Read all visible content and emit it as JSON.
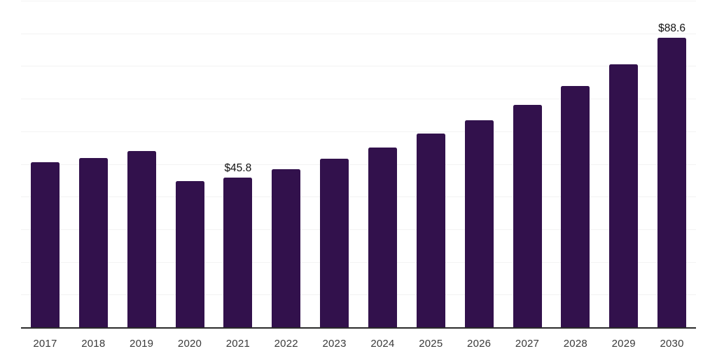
{
  "chart_data": {
    "type": "bar",
    "title": "",
    "xlabel": "",
    "ylabel": "",
    "categories": [
      "2017",
      "2018",
      "2019",
      "2020",
      "2021",
      "2022",
      "2023",
      "2024",
      "2025",
      "2026",
      "2027",
      "2028",
      "2029",
      "2030"
    ],
    "values": [
      50.6,
      51.9,
      54.0,
      44.8,
      45.8,
      48.3,
      51.6,
      55.1,
      59.3,
      63.4,
      68.1,
      73.8,
      80.6,
      88.6
    ],
    "ylim": [
      0,
      100
    ],
    "grid": true,
    "gridline_values": [
      10,
      20,
      30,
      40,
      50,
      60,
      70,
      80,
      90,
      100
    ],
    "legend": "none",
    "annotations": [
      {
        "category": "2021",
        "label": "$45.8"
      },
      {
        "category": "2030",
        "label": "$88.6"
      }
    ],
    "colors": {
      "bar": "#32114c",
      "gridline": "#f3f3f3",
      "axis_line": "#2b2b2b",
      "tick_label": "#3a3a3a",
      "data_label": "#111111",
      "background": "#ffffff"
    }
  }
}
